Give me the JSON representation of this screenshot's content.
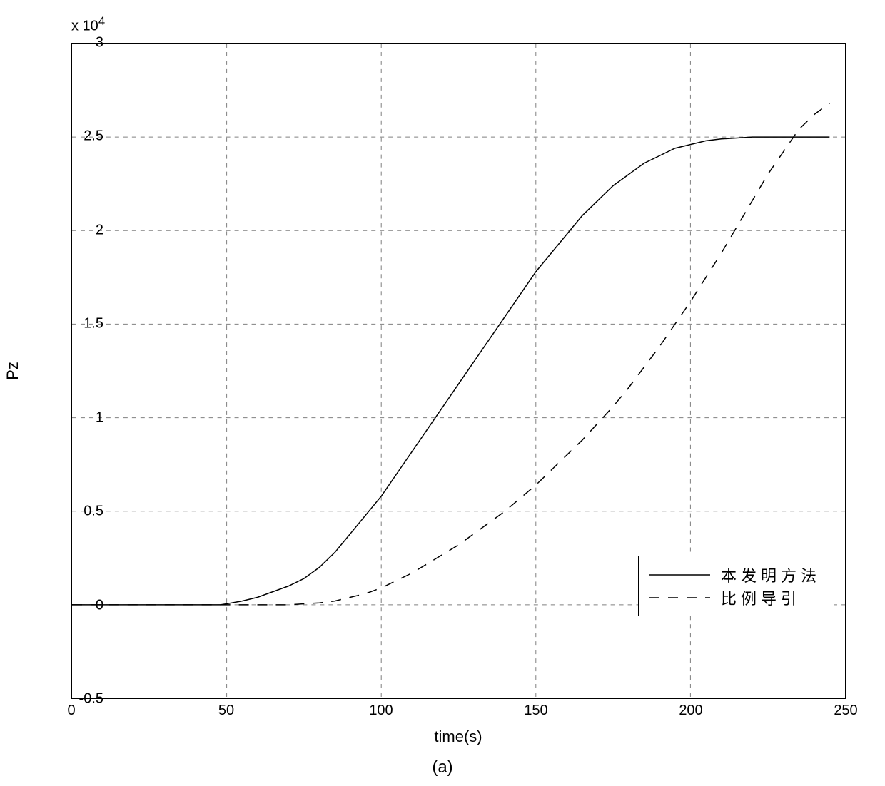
{
  "chart": {
    "type": "line",
    "xlabel": "time(s)",
    "ylabel": "Pz",
    "exponent_label": "x 10",
    "exponent_superscript": "4",
    "subtitle": "(a)",
    "xlim": [
      0,
      250
    ],
    "ylim": [
      -0.5,
      3
    ],
    "x_ticks": [
      0,
      50,
      100,
      150,
      200,
      250
    ],
    "y_ticks": [
      -0.5,
      0,
      0.5,
      1,
      1.5,
      2,
      2.5,
      3
    ],
    "background_color": "#ffffff",
    "grid_color": "#808080",
    "axis_color": "#000000",
    "text_color": "#000000",
    "tick_fontsize": 20,
    "label_fontsize": 22,
    "series": [
      {
        "name": "本发明方法",
        "style": "solid",
        "color": "#000000",
        "line_width": 1.5,
        "points": [
          [
            0,
            0
          ],
          [
            10,
            0
          ],
          [
            20,
            0
          ],
          [
            30,
            0
          ],
          [
            40,
            0
          ],
          [
            45,
            0
          ],
          [
            48,
            0
          ],
          [
            50,
            0.005
          ],
          [
            55,
            0.02
          ],
          [
            60,
            0.04
          ],
          [
            65,
            0.07
          ],
          [
            70,
            0.1
          ],
          [
            75,
            0.14
          ],
          [
            80,
            0.2
          ],
          [
            85,
            0.28
          ],
          [
            90,
            0.38
          ],
          [
            95,
            0.48
          ],
          [
            100,
            0.58
          ],
          [
            105,
            0.7
          ],
          [
            110,
            0.82
          ],
          [
            115,
            0.94
          ],
          [
            120,
            1.06
          ],
          [
            125,
            1.18
          ],
          [
            130,
            1.3
          ],
          [
            135,
            1.42
          ],
          [
            140,
            1.54
          ],
          [
            145,
            1.66
          ],
          [
            150,
            1.78
          ],
          [
            155,
            1.88
          ],
          [
            160,
            1.98
          ],
          [
            165,
            2.08
          ],
          [
            170,
            2.16
          ],
          [
            175,
            2.24
          ],
          [
            180,
            2.3
          ],
          [
            185,
            2.36
          ],
          [
            190,
            2.4
          ],
          [
            195,
            2.44
          ],
          [
            200,
            2.46
          ],
          [
            205,
            2.48
          ],
          [
            210,
            2.49
          ],
          [
            215,
            2.495
          ],
          [
            220,
            2.5
          ],
          [
            225,
            2.5
          ],
          [
            230,
            2.5
          ],
          [
            235,
            2.5
          ],
          [
            240,
            2.5
          ],
          [
            245,
            2.5
          ]
        ]
      },
      {
        "name": "比例导引",
        "style": "dashed",
        "color": "#000000",
        "line_width": 1.5,
        "dash_pattern": "14,12",
        "points": [
          [
            0,
            0
          ],
          [
            20,
            0
          ],
          [
            40,
            0
          ],
          [
            60,
            0
          ],
          [
            70,
            0
          ],
          [
            80,
            0.01
          ],
          [
            85,
            0.02
          ],
          [
            90,
            0.04
          ],
          [
            95,
            0.06
          ],
          [
            100,
            0.09
          ],
          [
            105,
            0.13
          ],
          [
            110,
            0.17
          ],
          [
            115,
            0.22
          ],
          [
            120,
            0.27
          ],
          [
            125,
            0.32
          ],
          [
            130,
            0.38
          ],
          [
            135,
            0.44
          ],
          [
            140,
            0.5
          ],
          [
            145,
            0.57
          ],
          [
            150,
            0.64
          ],
          [
            155,
            0.72
          ],
          [
            160,
            0.8
          ],
          [
            165,
            0.88
          ],
          [
            170,
            0.97
          ],
          [
            175,
            1.06
          ],
          [
            180,
            1.16
          ],
          [
            185,
            1.27
          ],
          [
            190,
            1.38
          ],
          [
            195,
            1.5
          ],
          [
            200,
            1.62
          ],
          [
            205,
            1.75
          ],
          [
            210,
            1.88
          ],
          [
            215,
            2.02
          ],
          [
            220,
            2.16
          ],
          [
            225,
            2.3
          ],
          [
            230,
            2.42
          ],
          [
            235,
            2.54
          ],
          [
            240,
            2.62
          ],
          [
            245,
            2.68
          ]
        ]
      }
    ],
    "legend": {
      "position": "lower-right",
      "items": [
        {
          "label": "本发明方法",
          "style": "solid"
        },
        {
          "label": "比例导引",
          "style": "dashed"
        }
      ]
    }
  }
}
